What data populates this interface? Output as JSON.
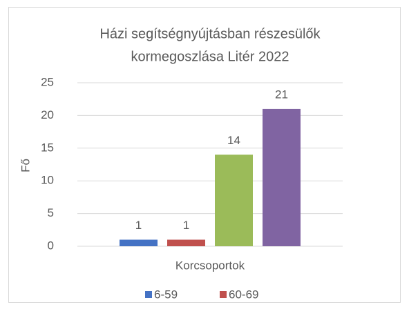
{
  "chart_data": {
    "type": "bar",
    "title": [
      "Házi segítségnyújtásban részesülők",
      "kormegoszlása  Litér 2022"
    ],
    "x_label": "Korcsoportok",
    "y_label": "Fő",
    "categories": [
      null
    ],
    "series": [
      {
        "name": "6-59",
        "color": "#4472c4",
        "values": [
          1
        ]
      },
      {
        "name": "60-69",
        "color": "#c0504d",
        "values": [
          1
        ]
      },
      {
        "name": null,
        "color": "#9bbb59",
        "values": [
          14
        ]
      },
      {
        "name": null,
        "color": "#8064a2",
        "values": [
          21
        ]
      }
    ],
    "ylim": [
      0,
      25
    ],
    "yticks": [
      0,
      5,
      10,
      15,
      20,
      25
    ],
    "grid": true,
    "legend": "bottom"
  }
}
